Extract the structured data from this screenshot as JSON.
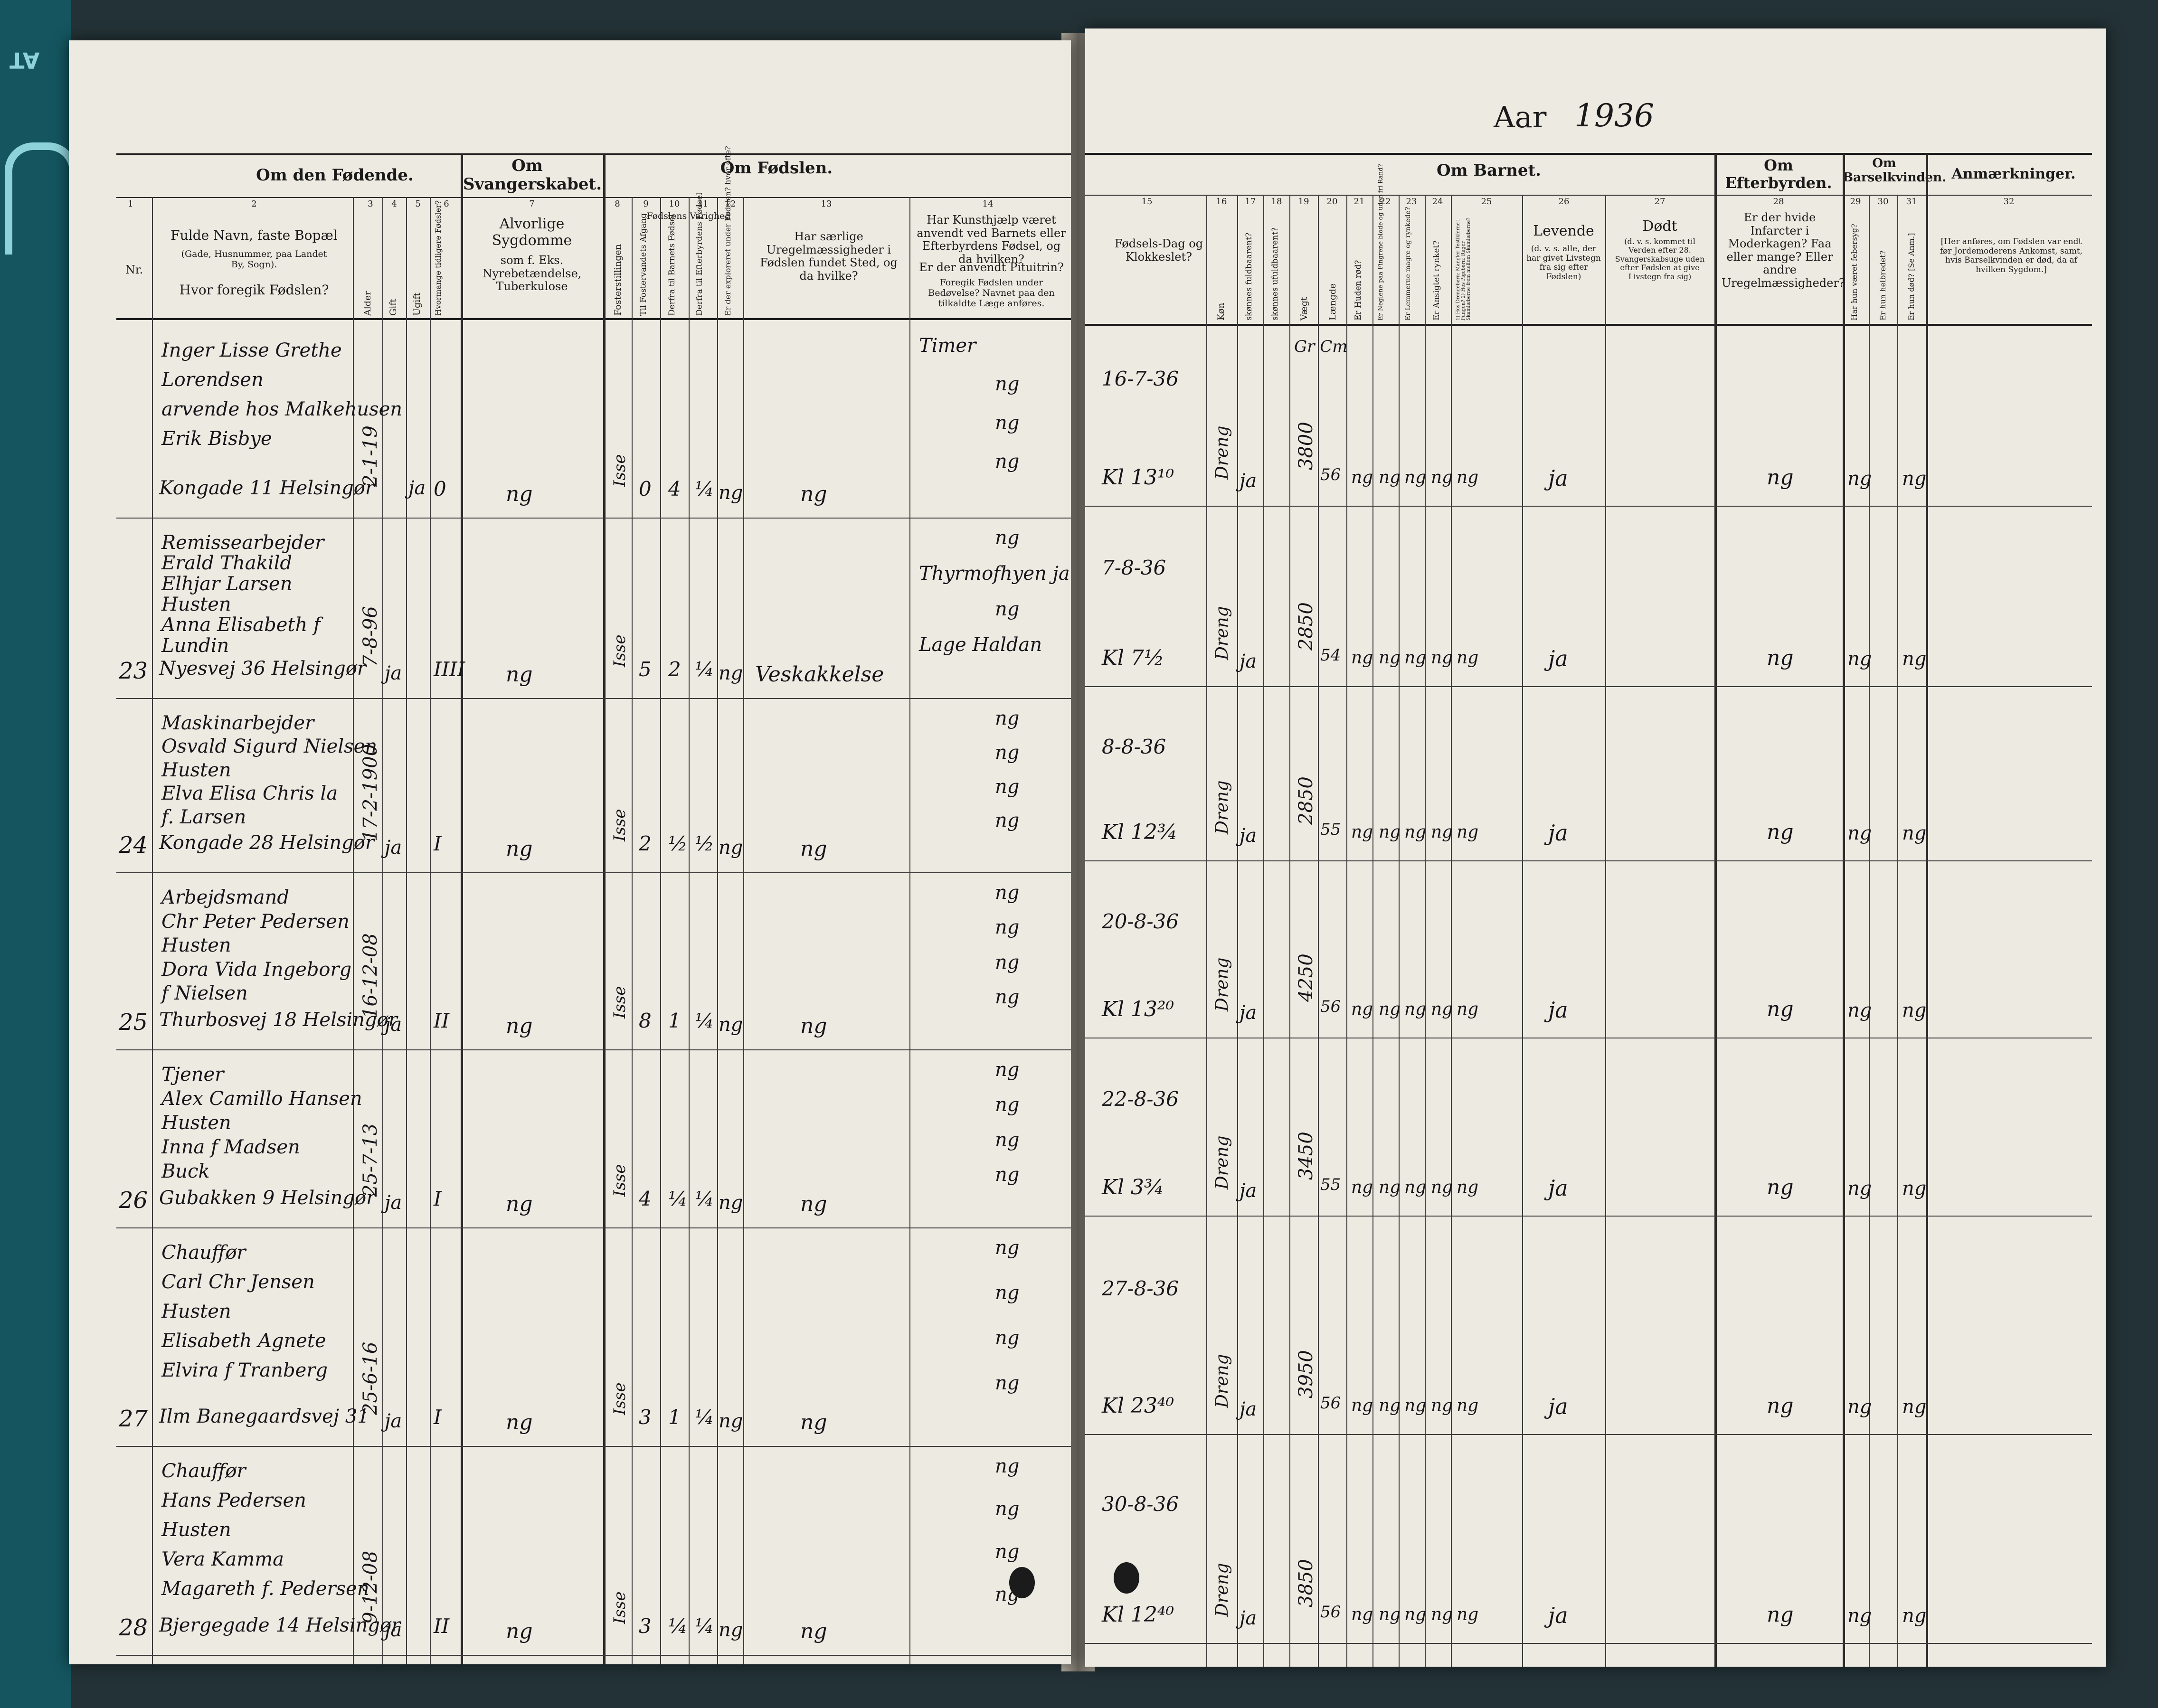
{
  "mat": {
    "label": "AT"
  },
  "title": {
    "aar": "Aar",
    "year": "1936"
  },
  "left": {
    "groups": {
      "fodende": "Om den Fødende.",
      "svanger": "Om Svangerskabet.",
      "fodslen": "Om Fødslen."
    },
    "colnums": [
      "1",
      "2",
      "3",
      "4",
      "5",
      "6",
      "7",
      "8",
      "9",
      "10",
      "11",
      "12",
      "13",
      "14"
    ],
    "headers": {
      "nr": "Nr.",
      "navn": "Fulde Navn, faste Bopæl",
      "navn_sub": "(Gade, Husnummer, paa Landet By, Sogn).",
      "hvor": "Hvor foregik Fødslen?",
      "alder": "Alder",
      "gift": "Gift",
      "ugift": "Ugift",
      "tidligere": "Hvormange tidligere Fødsler?",
      "sygdomme": "Alvorlige Sygdomme",
      "sygdomme_sub": "som f. Eks. Nyrebetændelse, Tuberkulose",
      "fosterstilling": "Fosterstillingen",
      "varighed": "Fødslens Varighed",
      "c9": "Til Fostervandets Afgang",
      "c10": "Derfra til Barnets Fødsel",
      "c11": "Derfra til Efterbyrdens Fødsel",
      "c12": "Er der exploreret under Fødslen? hvor ofte?",
      "c13": "Har særlige Uregelmæssigheder i Fødslen fundet Sted, og da hvilke?",
      "c14a": "Har Kunsthjælp været anvendt ved Barnets eller Efterbyrdens Fødsel, og da hvilken?",
      "c14b": "Er der anvendt Pituitrin?",
      "c14c": "Foregik Fødslen under Bedøvelse? Navnet paa den tilkaldte Læge anføres."
    }
  },
  "right": {
    "groups": {
      "barnet": "Om Barnet.",
      "efterbyrden": "Om Efterbyrden.",
      "barsel": "Om Barselkvinden.",
      "anm": "Anmærkninger."
    },
    "colnums": [
      "15",
      "16",
      "17",
      "18",
      "19",
      "20",
      "21",
      "22",
      "23",
      "24",
      "25",
      "26",
      "27",
      "28",
      "29",
      "30",
      "31",
      "32"
    ],
    "headers": {
      "dag": "Fødsels-Dag og Klokkeslet?",
      "kon": "Køn",
      "fuldbaaret": "skønnes fuldbaarent?",
      "ufuldbaaret": "skønnes ufuldbaarent?",
      "vaegt": "Vægt",
      "laengde": "Længde",
      "huden": "Er Huden rød?",
      "negle": "Er Neglene paa Fingrene blode og uden fri Rand?",
      "lemmer": "Er Lemmerne magre og rynkede?",
      "ansigt": "Er Ansigtet rynket?",
      "drengebarn": "1) Hos Drengebørn: Mangler Testiklerne i Pungen? 2) Hos Pigebørn: Rager Skamlæberne frem mellem Skamlæberne?",
      "levende": "Levende",
      "levende_sub": "(d. v. s. alle, der har givet Livstegn fra sig efter Fødslen)",
      "dodt": "Dødt",
      "dodt_sub": "(d. v. s. kommet til Verden efter 28. Svangerskabsuge uden efter Fødslen at give Livstegn fra sig)",
      "c28": "Er der hvide Infarcter i Moderkagen? Faa eller mange? Eller andre Uregelmæssigheder?",
      "c29": "Har hun været febersyg?",
      "c30": "Er hun helbredet?",
      "c31": "Er hun død? [Se Anm.]",
      "c32": "[Her anføres, om Fødslen var endt før Jordemoderens Ankomst, samt, hvis Barselkvinden er død, da af hvilken Sygdom.]"
    }
  },
  "entries": [
    {
      "nr": "",
      "lines": [
        "Inger Lisse Grethe",
        "Lorendsen",
        "arvende hos Malkehusen",
        "Erik Bisbye"
      ],
      "address": "Kongade 11 Helsingør",
      "alder": "2-1-19",
      "gift": "",
      "ugift": "ja",
      "tidligere": "0",
      "sygdomme": "ng",
      "foster": "Isse",
      "c9": "0",
      "c10": "4",
      "c11": "¼",
      "c12": "ng",
      "c13": "ng",
      "c14": [
        "Timer",
        "ng",
        "ng",
        "ng"
      ],
      "dato": "16-7-36",
      "klokke": "Kl 13¹⁰",
      "kon": "Dreng",
      "fuld": "ja",
      "vaegt": "3800",
      "laengde": "56",
      "checks": [
        "ng",
        "ng",
        "ng",
        "ng",
        "ng"
      ],
      "levende": "ja",
      "c28": "ng",
      "c29": "ng",
      "c31": "ng",
      "extra": "Gr Cm"
    },
    {
      "nr": "23",
      "lines": [
        "Remissearbejder",
        "Erald Thakild",
        "Elhjar Larsen",
        "Husten",
        "Anna Elisabeth f",
        "Lundin"
      ],
      "address": "Nyesvej 36 Helsingør",
      "alder": "7-8-96",
      "gift": "ja",
      "ugift": "",
      "tidligere": "IIII",
      "sygdomme": "ng",
      "foster": "Isse",
      "c9": "5",
      "c10": "2",
      "c11": "¼",
      "c12": "ng",
      "c13": "Veskakkelse",
      "c14": [
        "ng",
        "Thyrmofhyen ja",
        "ng",
        "Lage Haldan"
      ],
      "dato": "7-8-36",
      "klokke": "Kl 7½",
      "kon": "Dreng",
      "fuld": "ja",
      "vaegt": "2850",
      "laengde": "54",
      "checks": [
        "ng",
        "ng",
        "ng",
        "ng",
        "ng"
      ],
      "levende": "ja",
      "c28": "ng",
      "c29": "ng",
      "c31": "ng"
    },
    {
      "nr": "24",
      "lines": [
        "Maskinarbejder",
        "Osvald Sigurd Nielsen",
        "Husten",
        "Elva Elisa Chris la",
        "f. Larsen"
      ],
      "address": "Kongade 28 Helsingør",
      "alder": "17-2-1900",
      "gift": "ja",
      "ugift": "",
      "tidligere": "I",
      "sygdomme": "ng",
      "foster": "Isse",
      "c9": "2",
      "c10": "½",
      "c11": "½",
      "c12": "ng",
      "c13": "ng",
      "c14": [
        "ng",
        "ng",
        "ng",
        "ng"
      ],
      "dato": "8-8-36",
      "klokke": "Kl 12¾",
      "kon": "Dreng",
      "fuld": "ja",
      "vaegt": "2850",
      "laengde": "55",
      "checks": [
        "ng",
        "ng",
        "ng",
        "ng",
        "ng"
      ],
      "levende": "ja",
      "c28": "ng",
      "c29": "ng",
      "c31": "ng"
    },
    {
      "nr": "25",
      "lines": [
        "Arbejdsmand",
        "Chr Peter Pedersen",
        "Husten",
        "Dora Vida Ingeborg",
        "f Nielsen"
      ],
      "address": "Thurbosvej 18 Helsingør",
      "alder": "16-12-08",
      "gift": "ja",
      "ugift": "",
      "tidligere": "II",
      "sygdomme": "ng",
      "foster": "Isse",
      "c9": "8",
      "c10": "1",
      "c11": "¼",
      "c12": "ng",
      "c13": "ng",
      "c14": [
        "ng",
        "ng",
        "ng",
        "ng"
      ],
      "dato": "20-8-36",
      "klokke": "Kl 13²⁰",
      "kon": "Dreng",
      "fuld": "ja",
      "vaegt": "4250",
      "laengde": "56",
      "checks": [
        "ng",
        "ng",
        "ng",
        "ng",
        "ng"
      ],
      "levende": "ja",
      "c28": "ng",
      "c29": "ng",
      "c31": "ng"
    },
    {
      "nr": "26",
      "lines": [
        "Tjener",
        "Alex Camillo Hansen",
        "Husten",
        "Inna f Madsen",
        "Buck"
      ],
      "address": "Gubakken 9 Helsingør",
      "alder": "25-7-13",
      "gift": "ja",
      "ugift": "",
      "tidligere": "I",
      "sygdomme": "ng",
      "foster": "Isse",
      "c9": "4",
      "c10": "¼",
      "c11": "¼",
      "c12": "ng",
      "c13": "ng",
      "c14": [
        "ng",
        "ng",
        "ng",
        "ng"
      ],
      "dato": "22-8-36",
      "klokke": "Kl 3¾",
      "kon": "Dreng",
      "fuld": "ja",
      "vaegt": "3450",
      "laengde": "55",
      "checks": [
        "ng",
        "ng",
        "ng",
        "ng",
        "ng"
      ],
      "levende": "ja",
      "c28": "ng",
      "c29": "ng",
      "c31": "ng"
    },
    {
      "nr": "27",
      "lines": [
        "Chauffør",
        "Carl Chr Jensen",
        "Husten",
        "Elisabeth Agnete",
        "Elvira f Tranberg"
      ],
      "address": "Ilm Banegaardsvej 31",
      "alder": "25-6-16",
      "gift": "ja",
      "ugift": "",
      "tidligere": "I",
      "sygdomme": "ng",
      "foster": "Isse",
      "c9": "3",
      "c10": "1",
      "c11": "¼",
      "c12": "ng",
      "c13": "ng",
      "c14": [
        "ng",
        "ng",
        "ng",
        "ng"
      ],
      "dato": "27-8-36",
      "klokke": "Kl 23⁴⁰",
      "kon": "Dreng",
      "fuld": "ja",
      "vaegt": "3950",
      "laengde": "56",
      "checks": [
        "ng",
        "ng",
        "ng",
        "ng",
        "ng"
      ],
      "levende": "ja",
      "c28": "ng",
      "c29": "ng",
      "c31": "ng"
    },
    {
      "nr": "28",
      "lines": [
        "Chauffør",
        "Hans Pedersen",
        "Husten",
        "Vera Kamma",
        "Magareth f. Pedersen"
      ],
      "address": "Bjergegade 14 Helsingør",
      "alder": "9-12-08",
      "gift": "ja",
      "ugift": "",
      "tidligere": "II",
      "sygdomme": "ng",
      "foster": "Isse",
      "c9": "3",
      "c10": "¼",
      "c11": "¼",
      "c12": "ng",
      "c13": "ng",
      "c14": [
        "ng",
        "ng",
        "ng",
        "ng"
      ],
      "dato": "30-8-36",
      "klokke": "Kl 12⁴⁰",
      "kon": "Dreng",
      "fuld": "ja",
      "vaegt": "3850",
      "laengde": "56",
      "checks": [
        "ng",
        "ng",
        "ng",
        "ng",
        "ng"
      ],
      "levende": "ja",
      "c28": "ng",
      "c29": "ng",
      "c31": "ng"
    }
  ]
}
